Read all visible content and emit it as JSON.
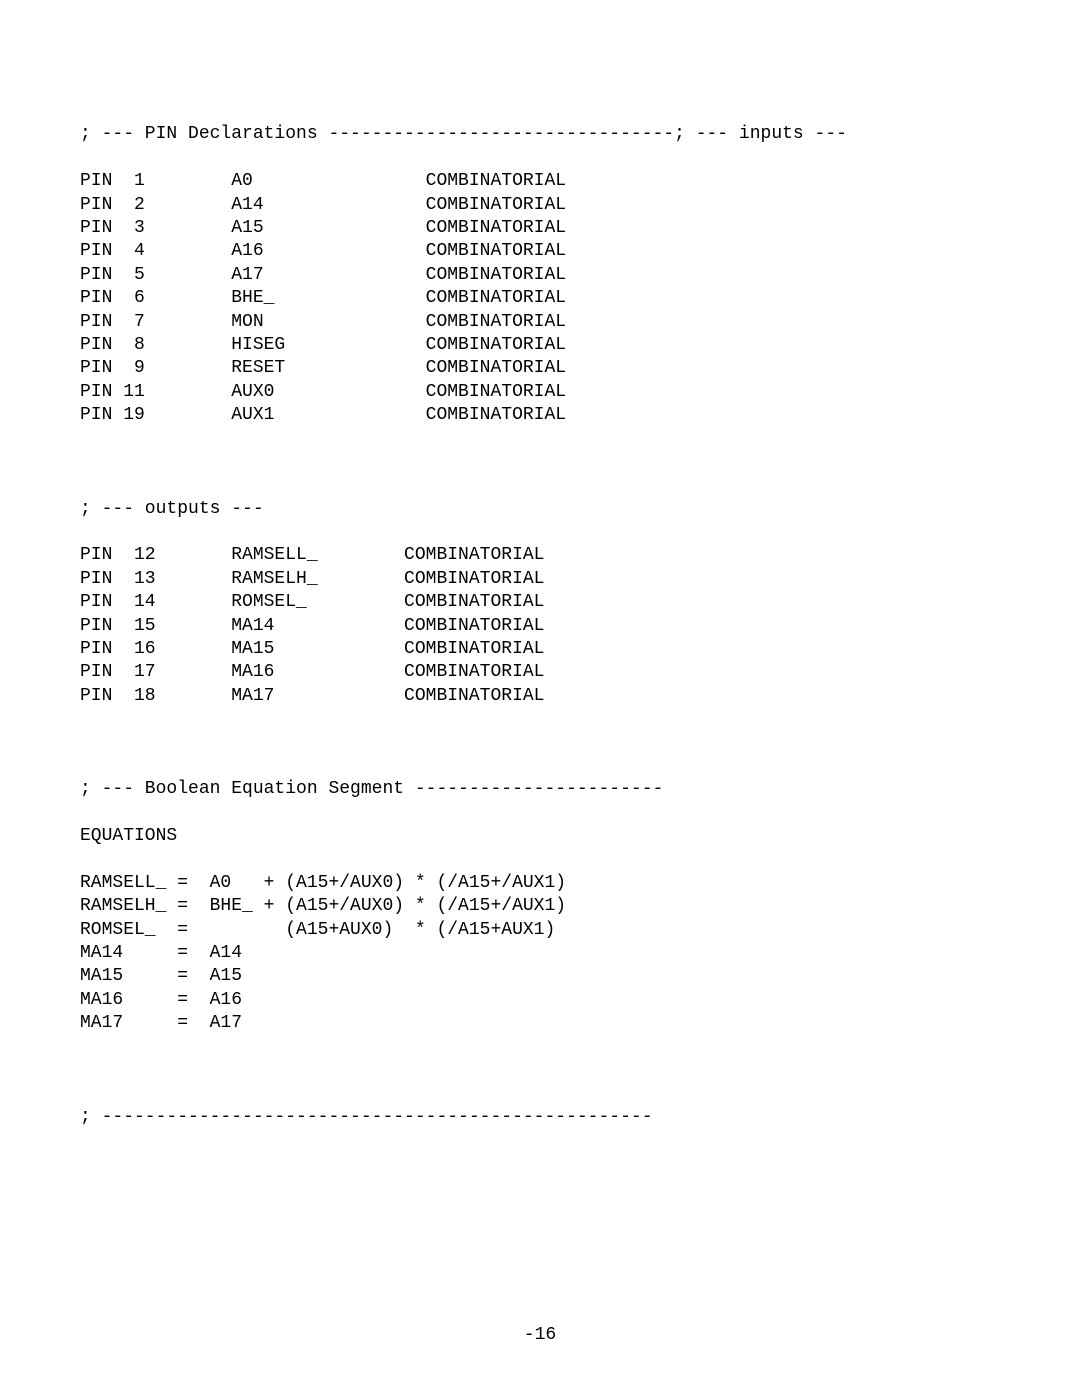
{
  "header_inputs": "; --- PIN Declarations --------------------------------; --- inputs ---",
  "pins_inputs": [
    {
      "num": " 1",
      "name": "A0",
      "type": "COMBINATORIAL"
    },
    {
      "num": " 2",
      "name": "A14",
      "type": "COMBINATORIAL"
    },
    {
      "num": " 3",
      "name": "A15",
      "type": "COMBINATORIAL"
    },
    {
      "num": " 4",
      "name": "A16",
      "type": "COMBINATORIAL"
    },
    {
      "num": " 5",
      "name": "A17",
      "type": "COMBINATORIAL"
    },
    {
      "num": " 6",
      "name": "BHE_",
      "type": "COMBINATORIAL"
    },
    {
      "num": " 7",
      "name": "MON",
      "type": "COMBINATORIAL"
    },
    {
      "num": " 8",
      "name": "HISEG",
      "type": "COMBINATORIAL"
    },
    {
      "num": " 9",
      "name": "RESET",
      "type": "COMBINATORIAL"
    },
    {
      "num": "11",
      "name": "AUX0",
      "type": "COMBINATORIAL"
    },
    {
      "num": "19",
      "name": "AUX1",
      "type": "COMBINATORIAL"
    }
  ],
  "header_outputs": "; --- outputs ---",
  "pins_outputs": [
    {
      "num": " 12",
      "name": "RAMSELL_",
      "type": "COMBINATORIAL"
    },
    {
      "num": " 13",
      "name": "RAMSELH_",
      "type": "COMBINATORIAL"
    },
    {
      "num": " 14",
      "name": "ROMSEL_",
      "type": "COMBINATORIAL"
    },
    {
      "num": " 15",
      "name": "MA14",
      "type": "COMBINATORIAL"
    },
    {
      "num": " 16",
      "name": "MA15",
      "type": "COMBINATORIAL"
    },
    {
      "num": " 17",
      "name": "MA16",
      "type": "COMBINATORIAL"
    },
    {
      "num": " 18",
      "name": "MA17",
      "type": "COMBINATORIAL"
    }
  ],
  "header_equations": "; --- Boolean Equation Segment -----------------------",
  "equations_label": "EQUATIONS",
  "equations": [
    "RAMSELL_ =  A0   + (A15+/AUX0) * (/A15+/AUX1)",
    "RAMSELH_ =  BHE_ + (A15+/AUX0) * (/A15+/AUX1)",
    "ROMSEL_  =         (A15+AUX0)  * (/A15+AUX1)",
    "MA14     =  A14",
    "MA15     =  A15",
    "MA16     =  A16",
    "MA17     =  A17"
  ],
  "footer_line": "; ---------------------------------------------------",
  "page_number": "-16",
  "layout": {
    "pin_col": 0,
    "num_col": 4,
    "name_col": 14,
    "type_col": 32,
    "output_name_col": 13,
    "output_type_col": 30
  }
}
